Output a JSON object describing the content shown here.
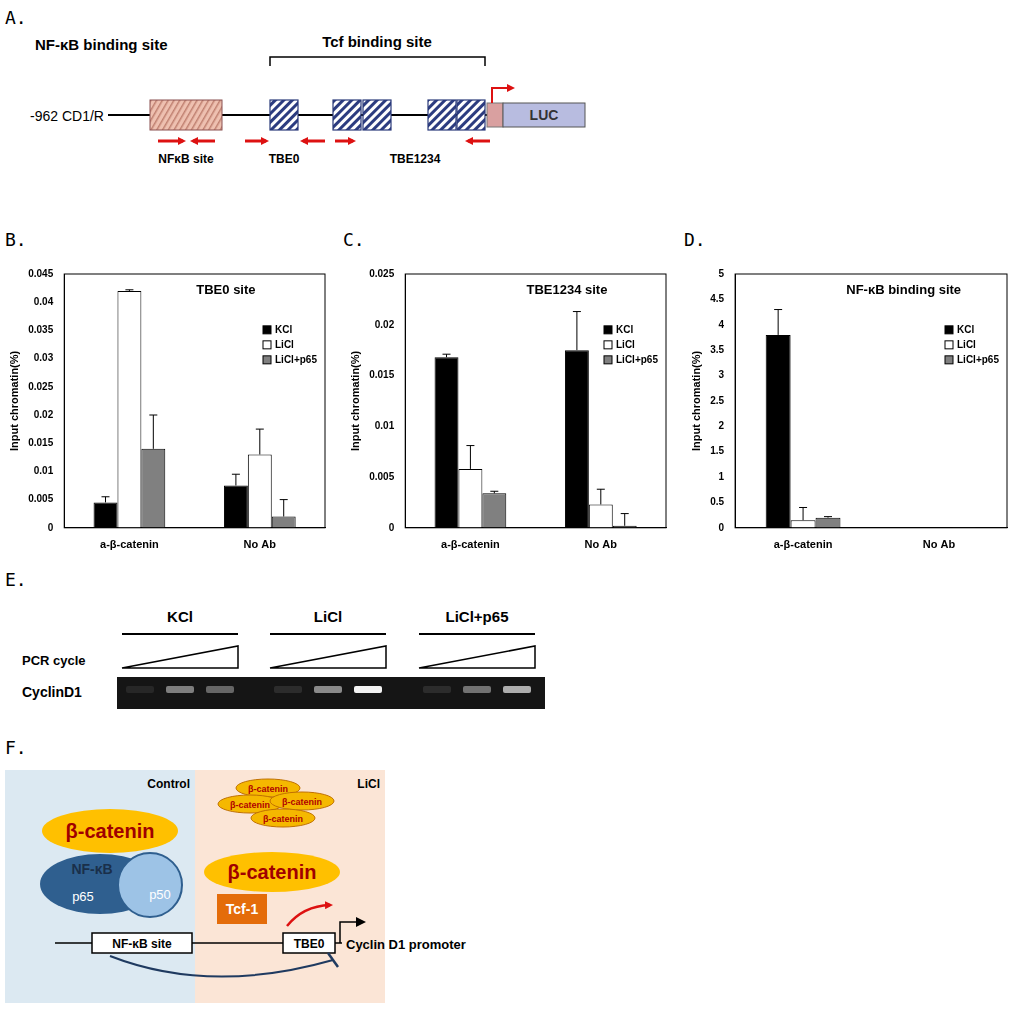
{
  "panel_labels": [
    "A.",
    "B.",
    "C.",
    "D.",
    "E.",
    "F."
  ],
  "diagram_a": {
    "construct": "-962 CD1/R",
    "nfkb_region": "NF-κB binding site",
    "tcf_region": "Tcf binding site",
    "reporter": "LUC",
    "primer_labels": [
      "NFκB site",
      "TBE0",
      "TBE1234"
    ]
  },
  "chart_data": [
    {
      "type": "bar",
      "title": "TBE0 site",
      "y_label": "Input chromatin(%)",
      "categories": [
        "a-β-catenin",
        "No Ab"
      ],
      "series": [
        {
          "name": "KCl",
          "color": "#000000",
          "values": [
            0.0045,
            0.0075
          ],
          "errors": [
            0.001,
            0.002
          ]
        },
        {
          "name": "LiCl",
          "color": "#ffffff",
          "values": [
            0.042,
            0.013
          ],
          "errors": [
            0.0002,
            0.0045
          ]
        },
        {
          "name": "LiCl+p65",
          "color": "#808080",
          "values": [
            0.014,
            0.002
          ],
          "errors": [
            0.006,
            0.003
          ]
        }
      ],
      "ylim": [
        0,
        0.045
      ],
      "yticks": [
        0,
        0.005,
        0.01,
        0.015,
        0.02,
        0.025,
        0.03,
        0.035,
        0.04,
        0.045
      ],
      "grid": false,
      "legend": "right"
    },
    {
      "type": "bar",
      "title": "TBE1234 site",
      "y_label": "Input chromatin(%)",
      "categories": [
        "a-β-catenin",
        "No Ab"
      ],
      "series": [
        {
          "name": "KCl",
          "color": "#000000",
          "values": [
            0.0168,
            0.0175
          ],
          "errors": [
            0.0003,
            0.0038
          ]
        },
        {
          "name": "LiCl",
          "color": "#ffffff",
          "values": [
            0.0058,
            0.0023
          ],
          "errors": [
            0.0023,
            0.0015
          ]
        },
        {
          "name": "LiCl+p65",
          "color": "#808080",
          "values": [
            0.0034,
            0.0002
          ],
          "errors": [
            0.0002,
            0.0012
          ]
        }
      ],
      "ylim": [
        0,
        0.025
      ],
      "yticks": [
        0,
        0.005,
        0.01,
        0.015,
        0.02,
        0.025
      ],
      "grid": false,
      "legend": "right"
    },
    {
      "type": "bar",
      "title": "NF-κB binding site",
      "y_label": "Input chromatin(%)",
      "categories": [
        "a-β-catenin",
        "No Ab"
      ],
      "series": [
        {
          "name": "KCl",
          "color": "#000000",
          "values": [
            3.8,
            0
          ],
          "errors": [
            0.5,
            0
          ]
        },
        {
          "name": "LiCl",
          "color": "#ffffff",
          "values": [
            0.15,
            0
          ],
          "errors": [
            0.25,
            0
          ]
        },
        {
          "name": "LiCl+p65",
          "color": "#808080",
          "values": [
            0.2,
            0.01
          ],
          "errors": [
            0.02,
            0
          ]
        }
      ],
      "ylim": [
        0,
        5
      ],
      "yticks": [
        0,
        0.5,
        1,
        1.5,
        2,
        2.5,
        3,
        3.5,
        4,
        4.5,
        5
      ],
      "grid": false,
      "legend": "right"
    }
  ],
  "gel_e": {
    "groups": [
      "KCl",
      "LiCl",
      "LiCl+p65"
    ],
    "ramp_label": "PCR cycle",
    "row_label": "CyclinD1",
    "band_intensity": [
      [
        0.08,
        0.45,
        0.35
      ],
      [
        0.1,
        0.5,
        0.95
      ],
      [
        0.1,
        0.4,
        0.65
      ]
    ]
  },
  "model_f": {
    "left_title": "Control",
    "right_title": "LiCl",
    "free_pool": [
      "β-catenin",
      "β-catenin",
      "β-catenin",
      "β-catenin"
    ],
    "left_complex": {
      "coactivator": "β-catenin",
      "factor": "NF-κB",
      "subunits": [
        "p65",
        "p50"
      ]
    },
    "right_complex": {
      "coactivator": "β-catenin",
      "factor": "Tcf-1"
    },
    "elements": [
      "NF-κB site",
      "TBE0"
    ],
    "promoter": "Cyclin D1 promoter"
  }
}
